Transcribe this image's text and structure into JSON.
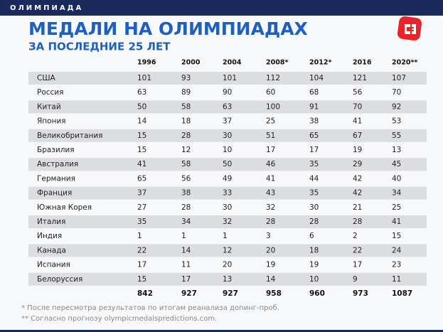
{
  "header": {
    "section": "ОЛИМПИАДА",
    "title": "МЕДАЛИ НА ОЛИМПИАДАХ",
    "subtitle": "ЗА ПОСЛЕДНИЕ 25 ЛЕТ"
  },
  "table": {
    "columns": [
      "1996",
      "2000",
      "2004",
      "2008*",
      "2012*",
      "2016",
      "2020**"
    ],
    "rows": [
      [
        "США",
        101,
        93,
        101,
        112,
        104,
        121,
        107
      ],
      [
        "Россия",
        63,
        89,
        90,
        60,
        68,
        56,
        70
      ],
      [
        "Китай",
        50,
        58,
        63,
        100,
        91,
        70,
        92
      ],
      [
        "Япония",
        14,
        18,
        37,
        25,
        38,
        41,
        53
      ],
      [
        "Великобритания",
        15,
        28,
        30,
        51,
        65,
        67,
        55
      ],
      [
        "Бразилия",
        15,
        12,
        10,
        17,
        17,
        19,
        13
      ],
      [
        "Австралия",
        41,
        58,
        50,
        46,
        35,
        29,
        45
      ],
      [
        "Германия",
        65,
        56,
        49,
        41,
        44,
        42,
        40
      ],
      [
        "Франция",
        37,
        38,
        33,
        43,
        35,
        42,
        34
      ],
      [
        "Южная Корея",
        27,
        28,
        30,
        32,
        30,
        21,
        25
      ],
      [
        "Италия",
        35,
        34,
        32,
        28,
        28,
        28,
        41
      ],
      [
        "Индия",
        1,
        1,
        1,
        3,
        6,
        2,
        15
      ],
      [
        "Канада",
        22,
        14,
        12,
        20,
        18,
        22,
        24
      ],
      [
        "Испания",
        17,
        11,
        20,
        19,
        19,
        17,
        23
      ],
      [
        "Белоруссия",
        15,
        17,
        13,
        14,
        10,
        9,
        11
      ]
    ],
    "totals": [
      842,
      927,
      927,
      958,
      960,
      973,
      1087
    ]
  },
  "footnotes": [
    "* После пересмотра результатов по итогам реанализа допинг-проб.",
    "** Согласно прогнозу olympicmedalspredictions.com."
  ]
}
